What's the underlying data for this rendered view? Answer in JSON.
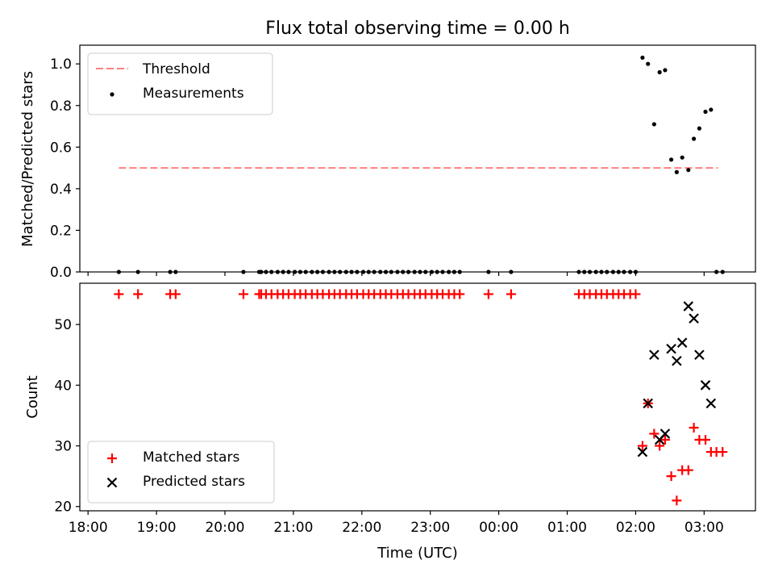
{
  "chart_data": [
    {
      "type": "scatter",
      "title": "Flux total observing time = 0.00 h",
      "xlabel": "",
      "ylabel": "Matched/Predicted stars",
      "xlim": [
        17.88,
        27.75
      ],
      "ylim": [
        0,
        1.09
      ],
      "yticks": [
        0.0,
        0.2,
        0.4,
        0.6,
        0.8,
        1.0
      ],
      "ytick_labels": [
        "0.0",
        "0.2",
        "0.4",
        "0.6",
        "0.8",
        "1.0"
      ],
      "legend": {
        "placement": "upper-left",
        "entries": [
          "Threshold",
          "Measurements"
        ]
      },
      "threshold": {
        "name": "Threshold",
        "value": 0.5,
        "x_start": 18.45,
        "x_end": 27.2,
        "color": "#ff7f7f",
        "dashed": true
      },
      "series": [
        {
          "name": "Measurements",
          "color": "#000000",
          "marker": "dot",
          "x": [
            18.45,
            18.73,
            19.2,
            19.28,
            20.27,
            20.5,
            20.53,
            20.6,
            20.68,
            20.77,
            20.85,
            20.93,
            21.02,
            21.1,
            21.18,
            21.27,
            21.35,
            21.43,
            21.52,
            21.6,
            21.68,
            21.77,
            21.85,
            21.93,
            22.02,
            22.1,
            22.18,
            22.27,
            22.35,
            22.43,
            22.52,
            22.6,
            22.68,
            22.77,
            22.85,
            22.93,
            23.02,
            23.1,
            23.18,
            23.27,
            23.35,
            23.43,
            23.85,
            24.18,
            25.17,
            25.25,
            25.33,
            25.42,
            25.5,
            25.58,
            25.67,
            25.75,
            25.83,
            25.92,
            26.0,
            26.1,
            26.18,
            26.27,
            26.35,
            26.43,
            26.52,
            26.6,
            26.68,
            26.77,
            26.85,
            26.93,
            27.02,
            27.1,
            27.18,
            27.27
          ],
          "y": [
            0,
            0,
            0,
            0,
            0,
            0,
            0,
            0,
            0,
            0,
            0,
            0,
            0,
            0,
            0,
            0,
            0,
            0,
            0,
            0,
            0,
            0,
            0,
            0,
            0,
            0,
            0,
            0,
            0,
            0,
            0,
            0,
            0,
            0,
            0,
            0,
            0,
            0,
            0,
            0,
            0,
            0,
            0,
            0,
            0,
            0,
            0,
            0,
            0,
            0,
            0,
            0,
            0,
            0,
            0,
            1.03,
            1.0,
            0.71,
            0.96,
            0.97,
            0.54,
            0.48,
            0.55,
            0.49,
            0.64,
            0.69,
            0.77,
            0.78,
            0,
            0
          ]
        }
      ]
    },
    {
      "type": "scatter",
      "title": "",
      "xlabel": "Time (UTC)",
      "ylabel": "Count",
      "xlim": [
        17.88,
        27.75
      ],
      "ylim": [
        19.3,
        56.8
      ],
      "yticks": [
        20,
        30,
        40,
        50
      ],
      "ytick_labels": [
        "20",
        "30",
        "40",
        "50"
      ],
      "xticks": [
        18,
        19,
        20,
        21,
        22,
        23,
        24,
        25,
        26,
        27
      ],
      "xtick_labels": [
        "18:00",
        "19:00",
        "20:00",
        "21:00",
        "22:00",
        "23:00",
        "00:00",
        "01:00",
        "02:00",
        "03:00"
      ],
      "legend": {
        "placement": "lower-left",
        "entries": [
          "Matched stars",
          "Predicted stars"
        ]
      },
      "series": [
        {
          "name": "Matched stars",
          "color": "#ff0000",
          "marker": "plus",
          "x": [
            18.45,
            18.73,
            19.2,
            19.28,
            20.27,
            20.5,
            20.53,
            20.6,
            20.68,
            20.77,
            20.85,
            20.93,
            21.02,
            21.1,
            21.18,
            21.27,
            21.35,
            21.43,
            21.52,
            21.6,
            21.68,
            21.77,
            21.85,
            21.93,
            22.02,
            22.1,
            22.18,
            22.27,
            22.35,
            22.43,
            22.52,
            22.6,
            22.68,
            22.77,
            22.85,
            22.93,
            23.02,
            23.1,
            23.18,
            23.27,
            23.35,
            23.43,
            23.85,
            24.18,
            25.17,
            25.25,
            25.33,
            25.42,
            25.5,
            25.58,
            25.67,
            25.75,
            25.83,
            25.92,
            26.0,
            26.1,
            26.18,
            26.27,
            26.35,
            26.43,
            26.52,
            26.6,
            26.68,
            26.77,
            26.85,
            26.93,
            27.02,
            27.1,
            27.18,
            27.27
          ],
          "y": [
            55,
            55,
            55,
            55,
            55,
            55,
            55,
            55,
            55,
            55,
            55,
            55,
            55,
            55,
            55,
            55,
            55,
            55,
            55,
            55,
            55,
            55,
            55,
            55,
            55,
            55,
            55,
            55,
            55,
            55,
            55,
            55,
            55,
            55,
            55,
            55,
            55,
            55,
            55,
            55,
            55,
            55,
            55,
            55,
            55,
            55,
            55,
            55,
            55,
            55,
            55,
            55,
            55,
            55,
            55,
            30,
            37,
            32,
            30,
            31,
            25,
            21,
            26,
            26,
            33,
            31,
            31,
            29,
            29,
            29
          ]
        },
        {
          "name": "Predicted stars",
          "color": "#000000",
          "marker": "x",
          "x": [
            26.1,
            26.18,
            26.27,
            26.35,
            26.43,
            26.52,
            26.6,
            26.68,
            26.77,
            26.85,
            26.93,
            27.02,
            27.1
          ],
          "y": [
            29,
            37,
            45,
            31,
            32,
            46,
            44,
            47,
            53,
            51,
            45,
            40,
            37
          ]
        }
      ]
    }
  ]
}
